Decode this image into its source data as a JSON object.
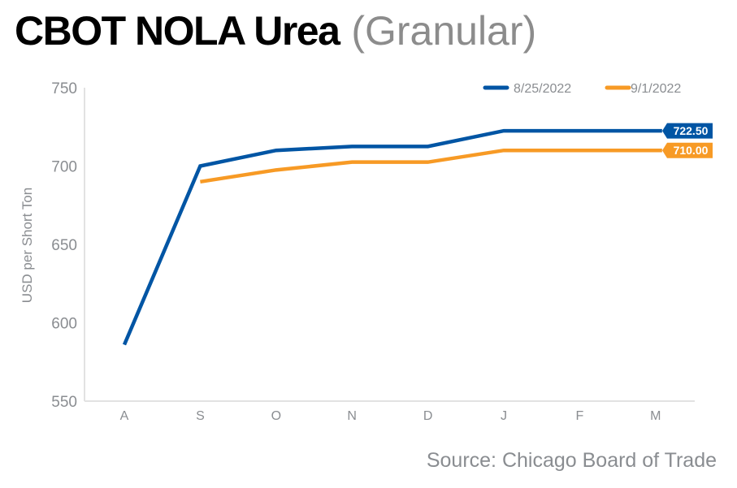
{
  "header": {
    "title_main": "CBOT NOLA Urea",
    "title_sub": "(Granular)"
  },
  "source": "Source: Chicago Board of Trade",
  "chart_data": {
    "type": "line",
    "title": "CBOT NOLA Urea (Granular)",
    "xlabel": "",
    "ylabel": "USD per Short Ton",
    "ylim": [
      550,
      750
    ],
    "yticks": [
      "550",
      "600",
      "650",
      "700",
      "750"
    ],
    "categories": [
      "A",
      "S",
      "O",
      "N",
      "D",
      "J",
      "F",
      "M"
    ],
    "grid": false,
    "legend": "top-right",
    "series": [
      {
        "name": "8/25/2022",
        "color": "#0055a4",
        "values": [
          586,
          700,
          710,
          712.5,
          712.5,
          722.5,
          722.5,
          722.5
        ],
        "end_label": "722.50"
      },
      {
        "name": "9/1/2022",
        "color": "#f79a25",
        "values": [
          null,
          690,
          697.5,
          702.5,
          702.5,
          710,
          710,
          710
        ],
        "end_label": "710.00"
      }
    ]
  }
}
